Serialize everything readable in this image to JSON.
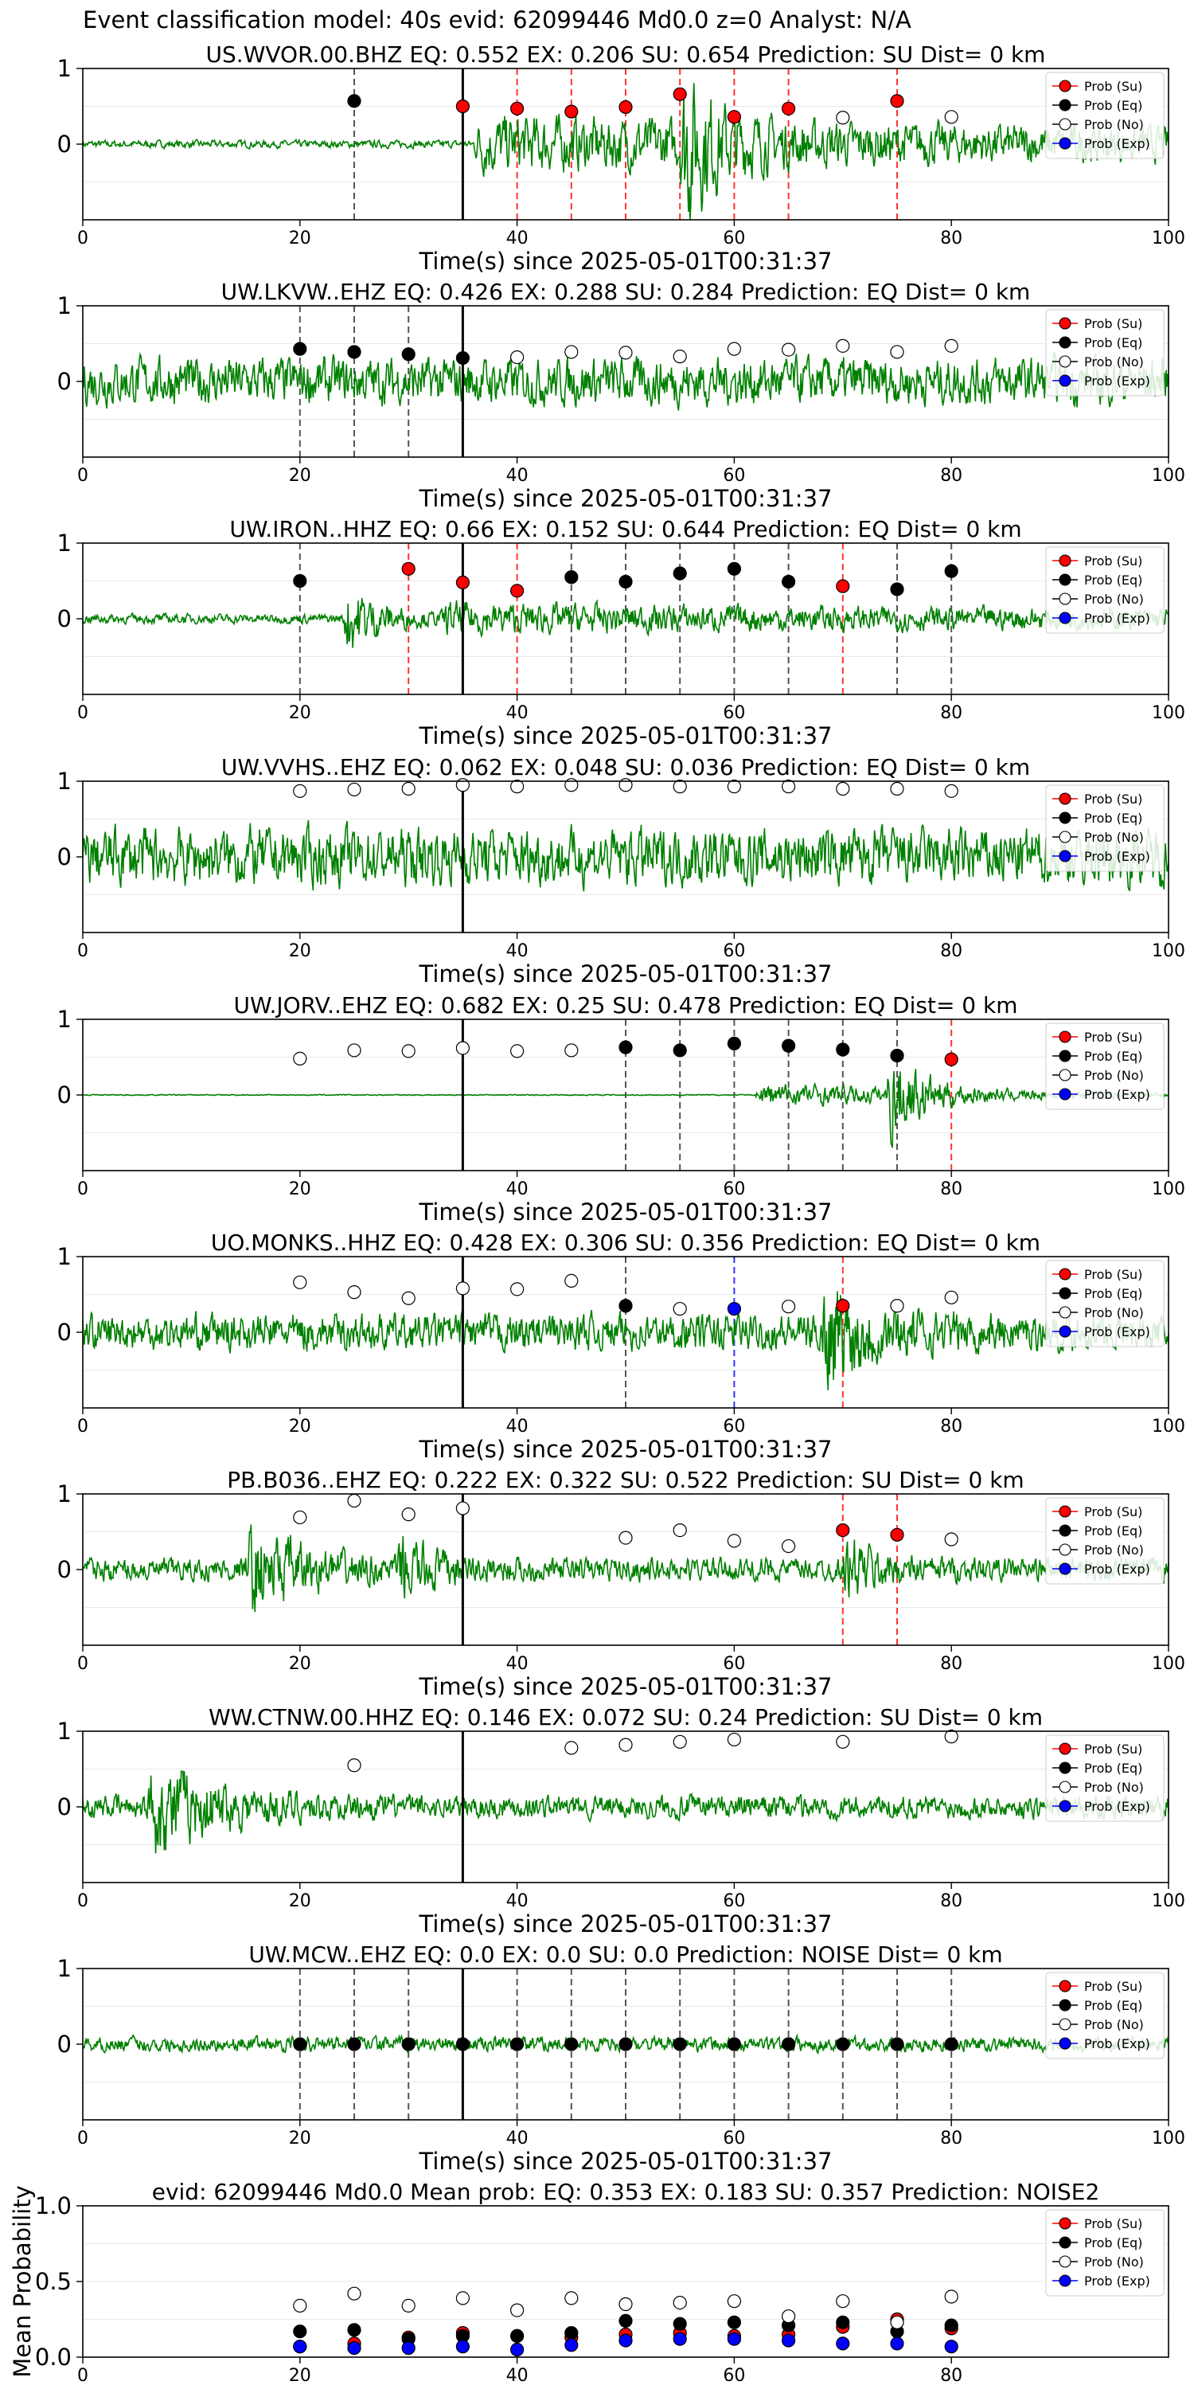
{
  "title": "Event classification model: 40s evid: 62099446 Md0.0 z=0 Analyst: N/A",
  "xlabel": "Time(s) since 2025-05-01T00:31:37",
  "legend": [
    "Prob (Su)",
    "Prob (Eq)",
    "Prob (No)",
    "Prob (Exp)"
  ],
  "colors": {
    "trace": "#008000",
    "su": "#ff0000",
    "eq": "#000000",
    "no": "#ffffff",
    "exp": "#0000ff",
    "vline_eq": "#555555",
    "vline_su": "#ff3333",
    "vline_exp": "#3333ff"
  },
  "chart_data": [
    {
      "type": "line",
      "title": "US.WVOR.00.BHZ   EQ: 0.552  EX: 0.206  SU: 0.654   Prediction: SU    Dist= 0 km",
      "xlim": [
        0,
        100
      ],
      "ylim": [
        -1,
        1
      ],
      "xticks": [
        0,
        20,
        40,
        60,
        80,
        100
      ],
      "yticks": [
        0,
        1
      ],
      "trace": {
        "noise": 0.07,
        "bursts": [
          [
            36,
            100,
            0.5
          ],
          [
            55,
            3,
            1.4
          ]
        ]
      },
      "points": [
        [
          25,
          0.57,
          "eq"
        ],
        [
          35,
          0.5,
          "su"
        ],
        [
          40,
          0.47,
          "su"
        ],
        [
          45,
          0.43,
          "su"
        ],
        [
          50,
          0.49,
          "su"
        ],
        [
          55,
          0.66,
          "su"
        ],
        [
          60,
          0.36,
          "su"
        ],
        [
          65,
          0.47,
          "su"
        ],
        [
          70,
          0.35,
          "no"
        ],
        [
          75,
          0.57,
          "su"
        ],
        [
          80,
          0.36,
          "no"
        ]
      ]
    },
    {
      "type": "line",
      "title": "UW.LKVW..EHZ   EQ: 0.426  EX: 0.288  SU: 0.284   Prediction: EQ    Dist= 0 km",
      "xlim": [
        0,
        100
      ],
      "ylim": [
        -1,
        1
      ],
      "xticks": [
        0,
        20,
        40,
        60,
        80,
        100
      ],
      "yticks": [
        0,
        1
      ],
      "trace": {
        "noise": 0.45,
        "bursts": []
      },
      "points": [
        [
          20,
          0.43,
          "eq"
        ],
        [
          25,
          0.39,
          "eq"
        ],
        [
          30,
          0.36,
          "eq"
        ],
        [
          35,
          0.31,
          "eq"
        ],
        [
          40,
          0.32,
          "no"
        ],
        [
          45,
          0.39,
          "no"
        ],
        [
          50,
          0.38,
          "no"
        ],
        [
          55,
          0.33,
          "no"
        ],
        [
          60,
          0.43,
          "no"
        ],
        [
          65,
          0.42,
          "no"
        ],
        [
          70,
          0.47,
          "no"
        ],
        [
          75,
          0.39,
          "no"
        ],
        [
          80,
          0.47,
          "no"
        ]
      ]
    },
    {
      "type": "line",
      "title": "UW.IRON..HHZ   EQ: 0.66  EX: 0.152  SU: 0.644   Prediction: EQ    Dist= 0 km",
      "xlim": [
        0,
        100
      ],
      "ylim": [
        -1,
        1
      ],
      "xticks": [
        0,
        20,
        40,
        60,
        80,
        100
      ],
      "yticks": [
        0,
        1
      ],
      "trace": {
        "noise": 0.09,
        "bursts": [
          [
            33,
            100,
            0.22
          ],
          [
            24,
            3,
            0.8
          ]
        ]
      },
      "points": [
        [
          20,
          0.5,
          "eq"
        ],
        [
          30,
          0.66,
          "su"
        ],
        [
          35,
          0.48,
          "su"
        ],
        [
          40,
          0.37,
          "su"
        ],
        [
          45,
          0.55,
          "eq"
        ],
        [
          50,
          0.49,
          "eq"
        ],
        [
          55,
          0.6,
          "eq"
        ],
        [
          60,
          0.66,
          "eq"
        ],
        [
          65,
          0.49,
          "eq"
        ],
        [
          70,
          0.43,
          "su"
        ],
        [
          75,
          0.39,
          "eq"
        ],
        [
          80,
          0.63,
          "eq"
        ]
      ]
    },
    {
      "type": "line",
      "title": "UW.VVHS..EHZ   EQ: 0.062  EX: 0.048  SU: 0.036   Prediction: EQ    Dist= 0 km",
      "xlim": [
        0,
        100
      ],
      "ylim": [
        -1,
        1
      ],
      "xticks": [
        0,
        20,
        40,
        60,
        80,
        100
      ],
      "yticks": [
        0,
        1
      ],
      "trace": {
        "noise": 0.55,
        "bursts": []
      },
      "points": [
        [
          20,
          0.87,
          "no"
        ],
        [
          25,
          0.89,
          "no"
        ],
        [
          30,
          0.9,
          "no"
        ],
        [
          35,
          0.95,
          "no"
        ],
        [
          40,
          0.93,
          "no"
        ],
        [
          45,
          0.95,
          "no"
        ],
        [
          50,
          0.95,
          "no"
        ],
        [
          55,
          0.93,
          "no"
        ],
        [
          60,
          0.93,
          "no"
        ],
        [
          65,
          0.93,
          "no"
        ],
        [
          70,
          0.9,
          "no"
        ],
        [
          75,
          0.9,
          "no"
        ],
        [
          80,
          0.87,
          "no"
        ]
      ]
    },
    {
      "type": "line",
      "title": "UW.JORV..EHZ   EQ: 0.682  EX: 0.25  SU: 0.478   Prediction: EQ    Dist= 0 km",
      "xlim": [
        0,
        100
      ],
      "ylim": [
        -1,
        1
      ],
      "xticks": [
        0,
        20,
        40,
        60,
        80,
        100
      ],
      "yticks": [
        0,
        1
      ],
      "trace": {
        "noise": 0.01,
        "bursts": [
          [
            62,
            20,
            0.25
          ],
          [
            74,
            3,
            1.0
          ]
        ]
      },
      "points": [
        [
          20,
          0.48,
          "no"
        ],
        [
          25,
          0.59,
          "no"
        ],
        [
          30,
          0.58,
          "no"
        ],
        [
          35,
          0.62,
          "no"
        ],
        [
          40,
          0.58,
          "no"
        ],
        [
          45,
          0.59,
          "no"
        ],
        [
          50,
          0.63,
          "eq"
        ],
        [
          55,
          0.59,
          "eq"
        ],
        [
          60,
          0.68,
          "eq"
        ],
        [
          65,
          0.65,
          "eq"
        ],
        [
          70,
          0.6,
          "eq"
        ],
        [
          75,
          0.52,
          "eq"
        ],
        [
          80,
          0.47,
          "su"
        ]
      ]
    },
    {
      "type": "line",
      "title": "UO.MONKS..HHZ   EQ: 0.428  EX: 0.306  SU: 0.356   Prediction: EQ    Dist= 0 km",
      "xlim": [
        0,
        100
      ],
      "ylim": [
        -1,
        1
      ],
      "xticks": [
        0,
        20,
        40,
        60,
        80,
        100
      ],
      "yticks": [
        0,
        1
      ],
      "trace": {
        "noise": 0.35,
        "bursts": [
          [
            68,
            4,
            1.1
          ]
        ]
      },
      "points": [
        [
          20,
          0.66,
          "no"
        ],
        [
          25,
          0.53,
          "no"
        ],
        [
          30,
          0.45,
          "no"
        ],
        [
          35,
          0.58,
          "no"
        ],
        [
          40,
          0.57,
          "no"
        ],
        [
          45,
          0.68,
          "no"
        ],
        [
          50,
          0.35,
          "eq"
        ],
        [
          55,
          0.31,
          "no"
        ],
        [
          60,
          0.31,
          "exp"
        ],
        [
          65,
          0.34,
          "no"
        ],
        [
          70,
          0.35,
          "su"
        ],
        [
          75,
          0.35,
          "no"
        ],
        [
          80,
          0.46,
          "no"
        ]
      ]
    },
    {
      "type": "line",
      "title": "PB.B036..EHZ   EQ: 0.222  EX: 0.322  SU: 0.522   Prediction: SU    Dist= 0 km",
      "xlim": [
        0,
        100
      ],
      "ylim": [
        -1,
        1
      ],
      "xticks": [
        0,
        20,
        40,
        60,
        80,
        100
      ],
      "yticks": [
        0,
        1
      ],
      "trace": {
        "noise": 0.22,
        "bursts": [
          [
            15,
            5,
            0.85
          ],
          [
            29,
            3,
            0.6
          ],
          [
            70,
            3,
            0.6
          ]
        ]
      },
      "points": [
        [
          20,
          0.69,
          "no"
        ],
        [
          25,
          0.91,
          "no"
        ],
        [
          30,
          0.73,
          "no"
        ],
        [
          35,
          0.81,
          "no"
        ],
        [
          50,
          0.42,
          "no"
        ],
        [
          55,
          0.52,
          "no"
        ],
        [
          60,
          0.38,
          "no"
        ],
        [
          65,
          0.31,
          "no"
        ],
        [
          70,
          0.52,
          "su"
        ],
        [
          75,
          0.46,
          "su"
        ],
        [
          80,
          0.4,
          "no"
        ]
      ]
    },
    {
      "type": "line",
      "title": "WW.CTNW.00.HHZ   EQ: 0.146  EX: 0.072  SU: 0.24   Prediction: SU    Dist= 0 km",
      "xlim": [
        0,
        100
      ],
      "ylim": [
        -1,
        1
      ],
      "xticks": [
        0,
        20,
        40,
        60,
        80,
        100
      ],
      "yticks": [
        0,
        1
      ],
      "trace": {
        "noise": 0.22,
        "bursts": [
          [
            6,
            6,
            0.9
          ]
        ]
      },
      "points": [
        [
          25,
          0.55,
          "no"
        ],
        [
          45,
          0.78,
          "no"
        ],
        [
          50,
          0.82,
          "no"
        ],
        [
          55,
          0.86,
          "no"
        ],
        [
          60,
          0.89,
          "no"
        ],
        [
          70,
          0.86,
          "no"
        ],
        [
          80,
          0.93,
          "no"
        ]
      ]
    },
    {
      "type": "line",
      "title": "UW.MCW..EHZ   EQ: 0.0  EX: 0.0  SU: 0.0   Prediction: NOISE    Dist= 0 km",
      "xlim": [
        0,
        100
      ],
      "ylim": [
        -1,
        1
      ],
      "xticks": [
        0,
        20,
        40,
        60,
        80,
        100
      ],
      "yticks": [
        0,
        1
      ],
      "trace": {
        "noise": 0.14,
        "bursts": []
      },
      "points": [
        [
          20,
          0.0,
          "eq"
        ],
        [
          25,
          0.0,
          "eq"
        ],
        [
          30,
          0.0,
          "eq"
        ],
        [
          35,
          0.0,
          "eq"
        ],
        [
          40,
          0.0,
          "eq"
        ],
        [
          45,
          0.0,
          "eq"
        ],
        [
          50,
          0.0,
          "eq"
        ],
        [
          55,
          0.0,
          "eq"
        ],
        [
          60,
          0.0,
          "eq"
        ],
        [
          65,
          0.0,
          "eq"
        ],
        [
          70,
          0.0,
          "eq"
        ],
        [
          75,
          0.0,
          "eq"
        ],
        [
          80,
          0.0,
          "eq"
        ]
      ]
    },
    {
      "type": "scatter",
      "title": "evid: 62099446  Md0.0   Mean prob:    EQ: 0.353  EX: 0.183  SU: 0.357   Prediction: NOISE2",
      "ylabel": "Mean Probability",
      "xlim": [
        0,
        100
      ],
      "ylim": [
        0,
        1
      ],
      "xticks": [
        0,
        20,
        40,
        60,
        80
      ],
      "yticks": [
        0.0,
        0.5,
        1.0
      ],
      "x": [
        20,
        25,
        30,
        35,
        40,
        45,
        50,
        55,
        60,
        65,
        70,
        75,
        80
      ],
      "series": [
        {
          "name": "Prob (Su)",
          "key": "su",
          "values": [
            0.07,
            0.09,
            0.13,
            0.16,
            0.14,
            0.13,
            0.15,
            0.16,
            0.14,
            0.15,
            0.2,
            0.25,
            0.19
          ]
        },
        {
          "name": "Prob (Eq)",
          "key": "eq",
          "values": [
            0.17,
            0.18,
            0.12,
            0.14,
            0.14,
            0.16,
            0.24,
            0.22,
            0.23,
            0.21,
            0.23,
            0.17,
            0.21
          ]
        },
        {
          "name": "Prob (No)",
          "key": "no",
          "values": [
            0.34,
            0.42,
            0.34,
            0.39,
            0.31,
            0.39,
            0.35,
            0.36,
            0.37,
            0.27,
            0.37,
            0.23,
            0.4
          ]
        },
        {
          "name": "Prob (Exp)",
          "key": "exp",
          "values": [
            0.07,
            0.06,
            0.06,
            0.07,
            0.05,
            0.08,
            0.11,
            0.12,
            0.12,
            0.11,
            0.09,
            0.09,
            0.07
          ]
        }
      ]
    }
  ]
}
